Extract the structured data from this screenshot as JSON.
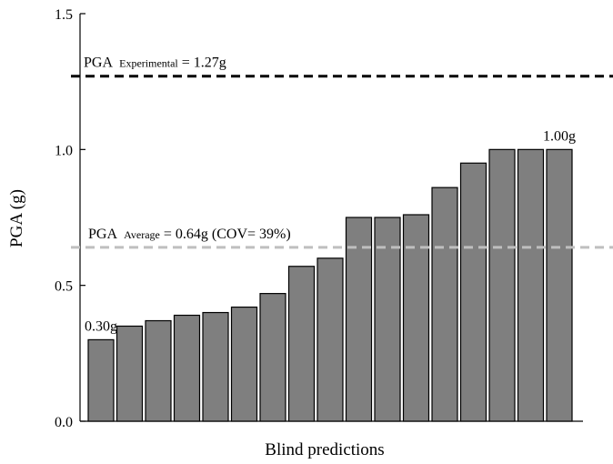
{
  "chart_data": {
    "type": "bar",
    "xlabel": "Blind predictions",
    "ylabel": "PGA (g)",
    "values": [
      0.3,
      0.35,
      0.37,
      0.39,
      0.4,
      0.42,
      0.47,
      0.57,
      0.6,
      0.75,
      0.75,
      0.76,
      0.86,
      0.95,
      1.0,
      1.0,
      1.0
    ],
    "value_labels": [
      "0.30g",
      null,
      null,
      null,
      null,
      null,
      null,
      null,
      null,
      null,
      null,
      null,
      null,
      null,
      null,
      null,
      "1.00g"
    ],
    "color": "#7f7f7f",
    "ylim": [
      0,
      1.5
    ],
    "yticks": [
      {
        "value": 0,
        "label": "0.0"
      },
      {
        "value": 0.5,
        "label": "0.5"
      },
      {
        "value": 1,
        "label": "1.0"
      },
      {
        "value": 1.5,
        "label": "1.5"
      }
    ],
    "reference_lines": [
      {
        "value": 1.27,
        "color": "#000000",
        "label": "PGA ",
        "label_sub": "Experimental",
        "label_rest": " = 1.27g"
      },
      {
        "value": 0.64,
        "color": "#bfbfbf",
        "label": "PGA ",
        "label_sub": "Average",
        "label_rest": " = 0.64g (COV= 39%)"
      }
    ]
  }
}
